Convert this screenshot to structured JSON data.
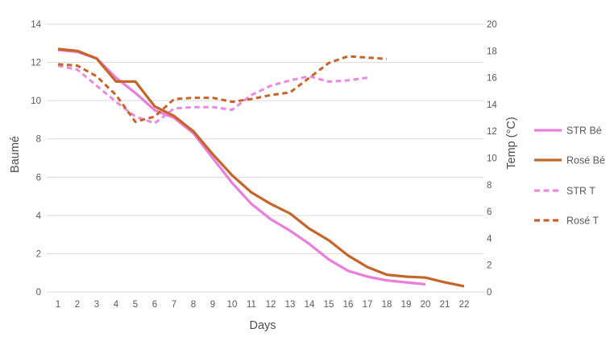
{
  "chart_data": {
    "type": "line",
    "title": "",
    "xlabel": "Days",
    "legend_position": "right",
    "grid": "horizontal",
    "background": "#ffffff",
    "gridline_color": "#d9d9d9",
    "x_ticks": [
      "1",
      "2",
      "3",
      "4",
      "5",
      "6",
      "7",
      "8",
      "9",
      "10",
      "11",
      "12",
      "13",
      "14",
      "15",
      "16",
      "17",
      "18",
      "19",
      "20",
      "21",
      "22"
    ],
    "left_axis": {
      "label": "Baumé",
      "min": 0,
      "max": 14,
      "ticks": [
        "0",
        "2",
        "4",
        "6",
        "8",
        "10",
        "12",
        "14"
      ]
    },
    "right_axis": {
      "label": "Temp (°C)",
      "min": 0,
      "max": 20,
      "ticks": [
        "0",
        "2",
        "4",
        "6",
        "8",
        "10",
        "12",
        "14",
        "16",
        "18",
        "20"
      ]
    },
    "series": [
      {
        "name": "STR Bé",
        "axis": "left",
        "line_style": "solid",
        "color": "#e97edb",
        "start_day": 1,
        "values": [
          12.65,
          12.55,
          12.2,
          11.2,
          10.4,
          9.5,
          9.1,
          8.3,
          7.0,
          5.7,
          4.6,
          3.8,
          3.2,
          2.5,
          1.7,
          1.1,
          0.8,
          0.6,
          0.5,
          0.4
        ]
      },
      {
        "name": "Rosé Bé",
        "axis": "left",
        "line_style": "solid",
        "color": "#c66429",
        "start_day": 1,
        "values": [
          12.7,
          12.6,
          12.2,
          11.0,
          11.0,
          9.7,
          9.2,
          8.4,
          7.2,
          6.1,
          5.2,
          4.6,
          4.1,
          3.3,
          2.7,
          1.9,
          1.3,
          0.9,
          0.8,
          0.75,
          0.5,
          0.3
        ]
      },
      {
        "name": "STR T",
        "axis": "right",
        "line_style": "dashed",
        "color": "#ec87e2",
        "start_day": 1,
        "values": [
          16.9,
          16.6,
          15.4,
          14.2,
          13.1,
          12.6,
          13.7,
          13.8,
          13.8,
          13.6,
          14.7,
          15.4,
          15.8,
          16.1,
          15.7,
          15.8,
          16.0
        ]
      },
      {
        "name": "Rosé T",
        "axis": "right",
        "line_style": "dashed",
        "color": "#c66429",
        "start_day": 1,
        "values": [
          17.0,
          16.9,
          16.1,
          14.7,
          12.7,
          13.1,
          14.4,
          14.5,
          14.5,
          14.2,
          14.4,
          14.7,
          14.9,
          16.0,
          17.1,
          17.6,
          17.5,
          17.4
        ]
      }
    ]
  },
  "text_colors": {
    "tick": "#595959",
    "axis_title": "#4d4d4d",
    "legend": "#595959"
  }
}
